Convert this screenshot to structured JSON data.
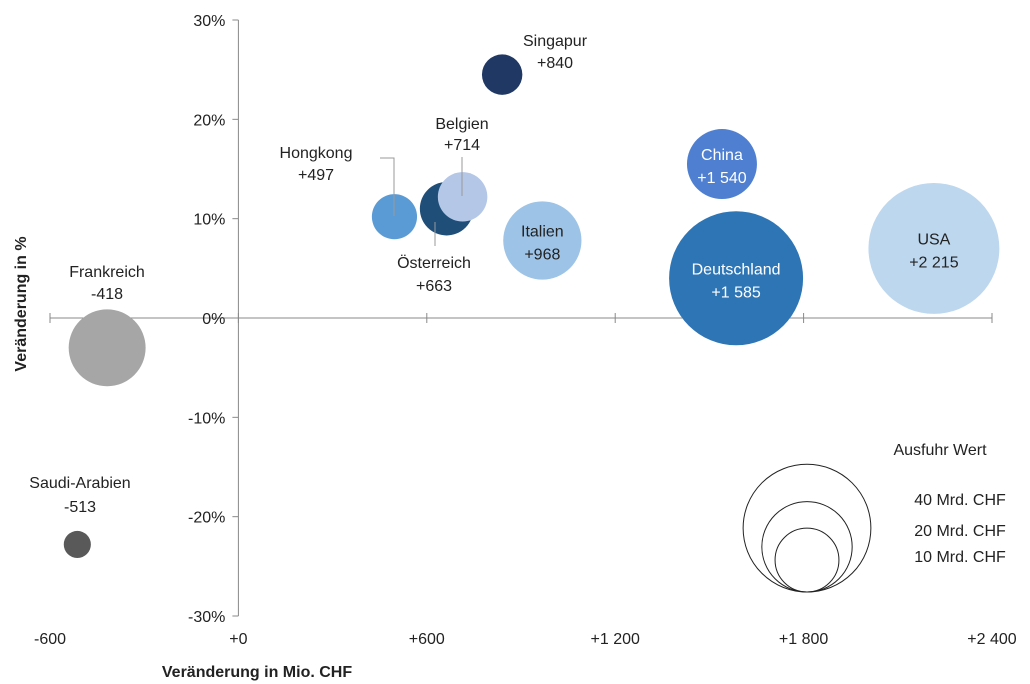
{
  "chart_data": {
    "type": "scatter",
    "variant": "bubble",
    "xlabel": "Veränderung in Mio. CHF",
    "ylabel": "Veränderung in %",
    "xlim": [
      -600,
      2400
    ],
    "ylim": [
      -30,
      30
    ],
    "x_ticks": [
      -600,
      0,
      600,
      1200,
      1800,
      2400
    ],
    "x_tick_labels": [
      "-600",
      "+0",
      "+600",
      "+1 200",
      "+1 800",
      "+2 400"
    ],
    "y_ticks": [
      30,
      20,
      10,
      0,
      -10,
      -20,
      -30
    ],
    "y_tick_labels": [
      "30%",
      "20%",
      "10%",
      "0%",
      "-10%",
      "-20%",
      "-30%"
    ],
    "grid": false,
    "points": [
      {
        "name": "USA",
        "x": 2215,
        "y": 7,
        "value_label": "+2 215",
        "export_bn_chf": 42,
        "color": "#bdd7ee",
        "label_color": "#222222"
      },
      {
        "name": "Deutschland",
        "x": 1585,
        "y": 4,
        "value_label": "+1 585",
        "export_bn_chf": 44,
        "color": "#2e75b6",
        "label_color": "#ffffff"
      },
      {
        "name": "China",
        "x": 1540,
        "y": 15.5,
        "value_label": "+1 540",
        "export_bn_chf": 12,
        "color": "#4f7fd0",
        "label_color": "#ffffff"
      },
      {
        "name": "Italien",
        "x": 968,
        "y": 7.8,
        "value_label": "+968",
        "export_bn_chf": 15,
        "color": "#9dc3e6",
        "label_color": "#222222"
      },
      {
        "name": "Singapur",
        "x": 840,
        "y": 24.5,
        "value_label": "+840",
        "export_bn_chf": 4,
        "color": "#1f3864",
        "label_color": "#222222"
      },
      {
        "name": "Belgien",
        "x": 714,
        "y": 12.2,
        "value_label": "+714",
        "export_bn_chf": 6,
        "color": "#b4c7e7",
        "label_color": "#222222"
      },
      {
        "name": "Österreich",
        "x": 663,
        "y": 11,
        "value_label": "+663",
        "export_bn_chf": 7,
        "color": "#1f4e79",
        "label_color": "#222222"
      },
      {
        "name": "Hongkong",
        "x": 497,
        "y": 10.2,
        "value_label": "+497",
        "export_bn_chf": 5,
        "color": "#5b9bd5",
        "label_color": "#222222"
      },
      {
        "name": "Frankreich",
        "x": -418,
        "y": -3,
        "value_label": "-418",
        "export_bn_chf": 14.5,
        "color": "#a6a6a6",
        "label_color": "#222222"
      },
      {
        "name": "Saudi-Arabien",
        "x": -513,
        "y": -22.8,
        "value_label": "-513",
        "export_bn_chf": 1.8,
        "color": "#595959",
        "label_color": "#222222"
      }
    ],
    "legend": {
      "title": "Ausfuhr Wert",
      "position": "bottom-right",
      "items": [
        {
          "label": "40 Mrd. CHF",
          "value_bn_chf": 40
        },
        {
          "label": "20 Mrd. CHF",
          "value_bn_chf": 20
        },
        {
          "label": "10 Mrd. CHF",
          "value_bn_chf": 10
        }
      ]
    }
  }
}
